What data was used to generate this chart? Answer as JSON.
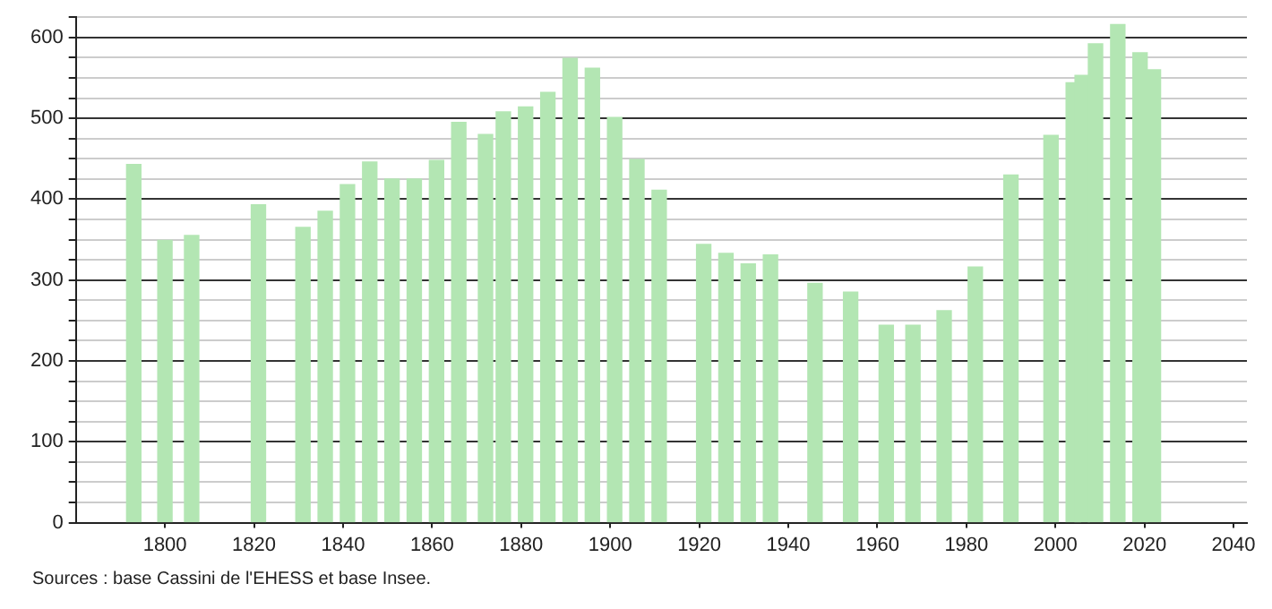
{
  "chart_data": {
    "type": "bar",
    "x": [
      1793,
      1800,
      1806,
      1821,
      1831,
      1836,
      1841,
      1846,
      1851,
      1856,
      1861,
      1866,
      1872,
      1876,
      1881,
      1886,
      1891,
      1896,
      1901,
      1906,
      1911,
      1921,
      1926,
      1931,
      1936,
      1946,
      1954,
      1962,
      1968,
      1975,
      1982,
      1990,
      1999,
      2004,
      2006,
      2009,
      2014,
      2019,
      2022
    ],
    "values": [
      443,
      349,
      355,
      393,
      365,
      385,
      418,
      446,
      425,
      425,
      448,
      495,
      480,
      508,
      514,
      532,
      574,
      562,
      501,
      449,
      411,
      344,
      333,
      320,
      331,
      296,
      285,
      244,
      244,
      262,
      316,
      430,
      479,
      544,
      553,
      592,
      616,
      581,
      560
    ],
    "color": "#b3e6b3",
    "xlim": [
      1780,
      2043
    ],
    "xticks": [
      1800,
      1820,
      1840,
      1860,
      1880,
      1900,
      1920,
      1940,
      1960,
      1980,
      2000,
      2020,
      2040
    ],
    "ylim": [
      0,
      625
    ],
    "yticks": [
      0,
      {
        "value": 25,
        "label": null
      },
      {
        "value": 50,
        "label": null
      },
      {
        "value": 75,
        "label": null
      },
      100,
      {
        "value": 125,
        "label": null
      },
      {
        "value": 150,
        "label": null
      },
      {
        "value": 175,
        "label": null
      },
      200,
      {
        "value": 225,
        "label": null
      },
      {
        "value": 250,
        "label": null
      },
      {
        "value": 275,
        "label": null
      },
      300,
      {
        "value": 325,
        "label": null
      },
      {
        "value": 350,
        "label": null
      },
      {
        "value": 375,
        "label": null
      },
      400,
      {
        "value": 425,
        "label": null
      },
      {
        "value": 450,
        "label": null
      },
      {
        "value": 475,
        "label": null
      },
      500,
      {
        "value": 525,
        "label": null
      },
      {
        "value": 550,
        "label": null
      },
      {
        "value": 575,
        "label": null
      },
      600,
      {
        "value": 625,
        "label": null
      }
    ],
    "grid": "y",
    "legend": false,
    "annotations": [
      "Sources : base Cassini de l'EHESS et base Insee."
    ]
  }
}
